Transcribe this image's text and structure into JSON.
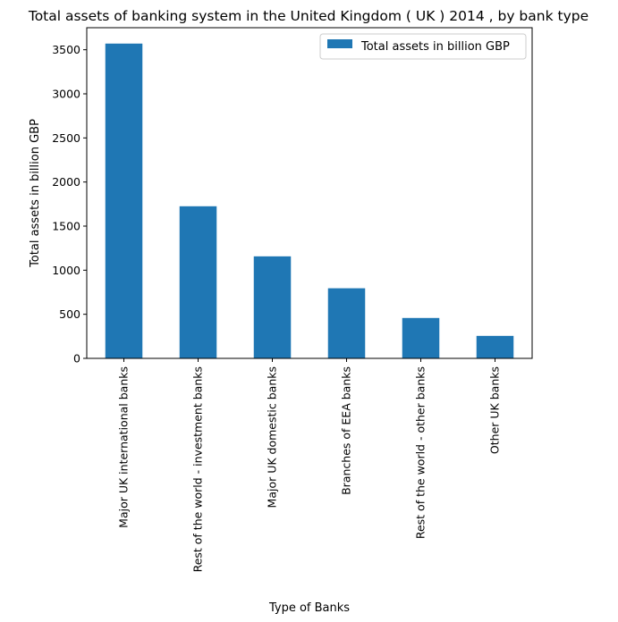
{
  "chart_data": {
    "type": "bar",
    "title": "Total assets of banking system in the United Kingdom ( UK ) 2014 , by bank type",
    "xlabel": "Type of Banks",
    "ylabel": "Total assets in billion GBP",
    "categories": [
      "Major UK international banks",
      "Rest of the world - investment banks",
      "Major UK domestic banks",
      "Branches of EEA banks",
      "Rest of the world - other banks",
      "Other UK banks"
    ],
    "series": [
      {
        "name": "Total assets in billion GBP",
        "values": [
          3570,
          1725,
          1157,
          795,
          458,
          255
        ]
      }
    ],
    "ylim": [
      0,
      3750
    ],
    "yticks": [
      0,
      500,
      1000,
      1500,
      2000,
      2500,
      3000,
      3500
    ],
    "grid": false,
    "legend_position": "top-right",
    "color": "#1f77b4"
  }
}
